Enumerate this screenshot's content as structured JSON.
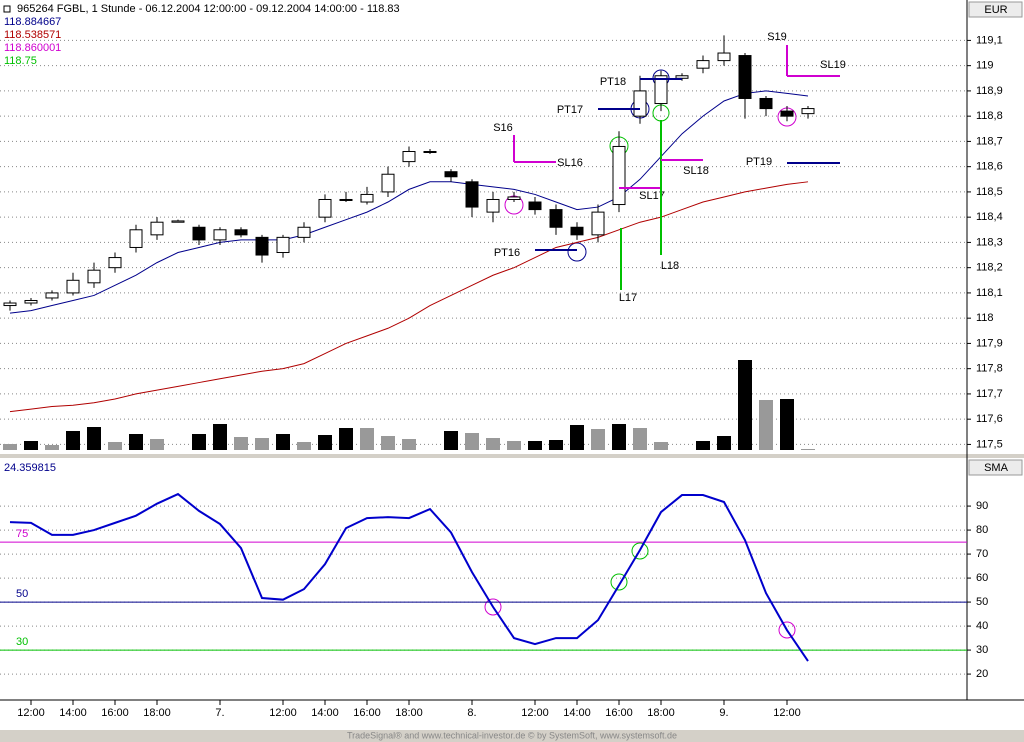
{
  "chart_data": [
    {
      "type": "candlestick",
      "title": "965264  FGBL, 1 Stunde - 06.12.2004 12:00:00 - 09.12.2004 14:00:00 - 118.83",
      "unit": "EUR",
      "categories": [
        null,
        "12:00",
        null,
        "14:00",
        null,
        "16:00",
        null,
        "18:00",
        null,
        null,
        "7.",
        null,
        null,
        "12:00",
        null,
        "14:00",
        null,
        "16:00",
        null,
        "18:00",
        null,
        null,
        "8.",
        null,
        null,
        "12:00",
        null,
        "14:00",
        null,
        "16:00",
        null,
        "18:00",
        null,
        null,
        "9.",
        null,
        null,
        "12:00",
        null
      ],
      "open": [
        118.05,
        118.06,
        118.08,
        118.1,
        118.14,
        118.2,
        118.28,
        118.33,
        118.38,
        118.36,
        118.31,
        118.35,
        118.32,
        118.26,
        118.32,
        118.4,
        118.47,
        118.46,
        118.5,
        118.62,
        118.66,
        118.58,
        118.54,
        118.42,
        118.47,
        118.46,
        118.43,
        118.36,
        118.33,
        118.45,
        118.8,
        118.85,
        118.95,
        118.99,
        119.02,
        119.04,
        118.87,
        118.82,
        118.81
      ],
      "high": [
        118.07,
        118.08,
        118.11,
        118.18,
        118.22,
        118.26,
        118.37,
        118.4,
        118.39,
        118.37,
        118.36,
        118.36,
        118.33,
        118.33,
        118.38,
        118.49,
        118.5,
        118.52,
        118.6,
        118.68,
        118.67,
        118.59,
        118.55,
        118.5,
        118.5,
        118.48,
        118.45,
        118.38,
        118.45,
        118.74,
        118.96,
        118.98,
        118.97,
        119.04,
        119.12,
        119.05,
        118.88,
        118.84,
        118.84
      ],
      "low": [
        118.03,
        118.05,
        118.07,
        118.09,
        118.12,
        118.18,
        118.26,
        118.31,
        118.38,
        118.29,
        118.29,
        118.32,
        118.22,
        118.24,
        118.3,
        118.38,
        118.46,
        118.45,
        118.48,
        118.6,
        118.65,
        118.54,
        118.4,
        118.38,
        118.46,
        118.41,
        118.33,
        118.31,
        118.3,
        118.42,
        118.77,
        118.82,
        118.94,
        118.97,
        119.0,
        118.79,
        118.8,
        118.78,
        118.79
      ],
      "close": [
        118.06,
        118.07,
        118.1,
        118.15,
        118.19,
        118.24,
        118.35,
        118.38,
        118.385,
        118.31,
        118.35,
        118.33,
        118.25,
        118.32,
        118.36,
        118.47,
        118.47,
        118.49,
        118.57,
        118.66,
        118.66,
        118.56,
        118.44,
        118.47,
        118.48,
        118.43,
        118.36,
        118.33,
        118.42,
        118.68,
        118.9,
        118.96,
        118.96,
        119.02,
        119.05,
        118.87,
        118.83,
        118.8,
        118.83
      ],
      "series": [
        {
          "name": "118.884667",
          "color": "#00008b",
          "values": [
            118.02,
            118.03,
            118.05,
            118.07,
            118.09,
            118.13,
            118.17,
            118.22,
            118.26,
            118.28,
            118.3,
            118.31,
            118.31,
            118.31,
            118.33,
            118.36,
            118.39,
            118.42,
            118.46,
            118.51,
            118.54,
            118.54,
            118.53,
            118.52,
            118.51,
            118.49,
            118.46,
            118.43,
            118.44,
            118.48,
            118.55,
            118.64,
            118.73,
            118.8,
            118.86,
            118.89,
            118.9,
            118.89,
            118.88
          ]
        },
        {
          "name": "118.538571",
          "color": "#b00000",
          "values": [
            117.63,
            117.64,
            117.65,
            117.655,
            117.665,
            117.68,
            117.7,
            117.715,
            117.73,
            117.745,
            117.76,
            117.775,
            117.79,
            117.8,
            117.82,
            117.86,
            117.9,
            117.93,
            117.96,
            118.0,
            118.05,
            118.09,
            118.13,
            118.17,
            118.2,
            118.24,
            118.28,
            118.3,
            118.32,
            118.35,
            118.38,
            118.4,
            118.43,
            118.46,
            118.48,
            118.5,
            118.515,
            118.53,
            118.54
          ]
        },
        {
          "name": "118.860001",
          "color": "#d000d0"
        },
        {
          "name": "118.75",
          "color": "#00c000"
        }
      ],
      "volume": {
        "values": [
          6,
          9,
          5,
          19,
          23,
          8,
          16,
          11,
          null,
          16,
          26,
          13,
          12,
          16,
          8,
          15,
          22,
          22,
          14,
          11,
          null,
          19,
          17,
          12,
          9,
          9,
          10,
          25,
          21,
          26,
          22,
          8,
          null,
          9,
          14,
          90,
          50,
          51,
          1
        ],
        "colors": [
          "#999",
          "#000",
          "#999",
          "#000",
          "#000",
          "#999",
          "#000",
          "#999",
          "#000",
          "#000",
          "#000",
          "#999",
          "#999",
          "#000",
          "#999",
          "#000",
          "#000",
          "#999",
          "#999",
          "#999",
          "#000",
          "#000",
          "#999",
          "#999",
          "#999",
          "#000",
          "#000",
          "#000",
          "#999",
          "#000",
          "#999",
          "#999",
          "#000",
          "#000",
          "#000",
          "#000",
          "#999",
          "#000",
          "#999"
        ]
      },
      "annotations": [
        "S16",
        "SL16",
        "PT16",
        "L17",
        "SL17",
        "PT17",
        "PT18",
        "L18",
        "SL18",
        "S19",
        "SL19",
        "PT19"
      ],
      "ylim": [
        117.47,
        119.26
      ],
      "yticks": [
        {
          "value": 117.5,
          "label": "117,5"
        },
        {
          "value": 117.6,
          "label": "117,6"
        },
        {
          "value": 117.7,
          "label": "117,7"
        },
        {
          "value": 117.8,
          "label": "117,8"
        },
        {
          "value": 117.9,
          "label": "117,9"
        },
        118,
        {
          "value": 118.1,
          "label": "118,1"
        },
        {
          "value": 118.2,
          "label": "118,2"
        },
        {
          "value": 118.3,
          "label": "118,3"
        },
        {
          "value": 118.4,
          "label": "118,4"
        },
        {
          "value": 118.5,
          "label": "118,5"
        },
        {
          "value": 118.6,
          "label": "118,6"
        },
        {
          "value": 118.7,
          "label": "118,7"
        },
        {
          "value": 118.8,
          "label": "118,8"
        },
        {
          "value": 118.9,
          "label": "118,9"
        },
        119,
        {
          "value": 119.1,
          "label": "119,1"
        }
      ],
      "grid": true
    },
    {
      "type": "line",
      "title": "24.359815",
      "axis_label": "SMA",
      "color": "#0000cc",
      "values": [
        83.3,
        83,
        78,
        78,
        80,
        83,
        86,
        91,
        95,
        88,
        82.5,
        72.5,
        51.7,
        51,
        55.4,
        65.8,
        80.8,
        85,
        85.4,
        85,
        88.75,
        79,
        62.5,
        48,
        35,
        32.5,
        35,
        35,
        42.5,
        57,
        71.7,
        87.5,
        94.6,
        94.6,
        91.7,
        75.8,
        53.75,
        38.3,
        25.4
      ],
      "levels": [
        {
          "value": 75,
          "color": "#d000d0"
        },
        {
          "value": 50,
          "color": "#00008b"
        },
        {
          "value": 30,
          "color": "#00c000"
        }
      ],
      "ylim": [
        9.2,
        109.2
      ],
      "yticks": [
        20,
        30,
        40,
        50,
        60,
        70,
        80,
        90
      ],
      "grid": true
    },
    {
      "type": "footer",
      "title": "TradeSignal® and www.technical-investor.de © by SystemSoft, www.systemsoft.de"
    }
  ]
}
